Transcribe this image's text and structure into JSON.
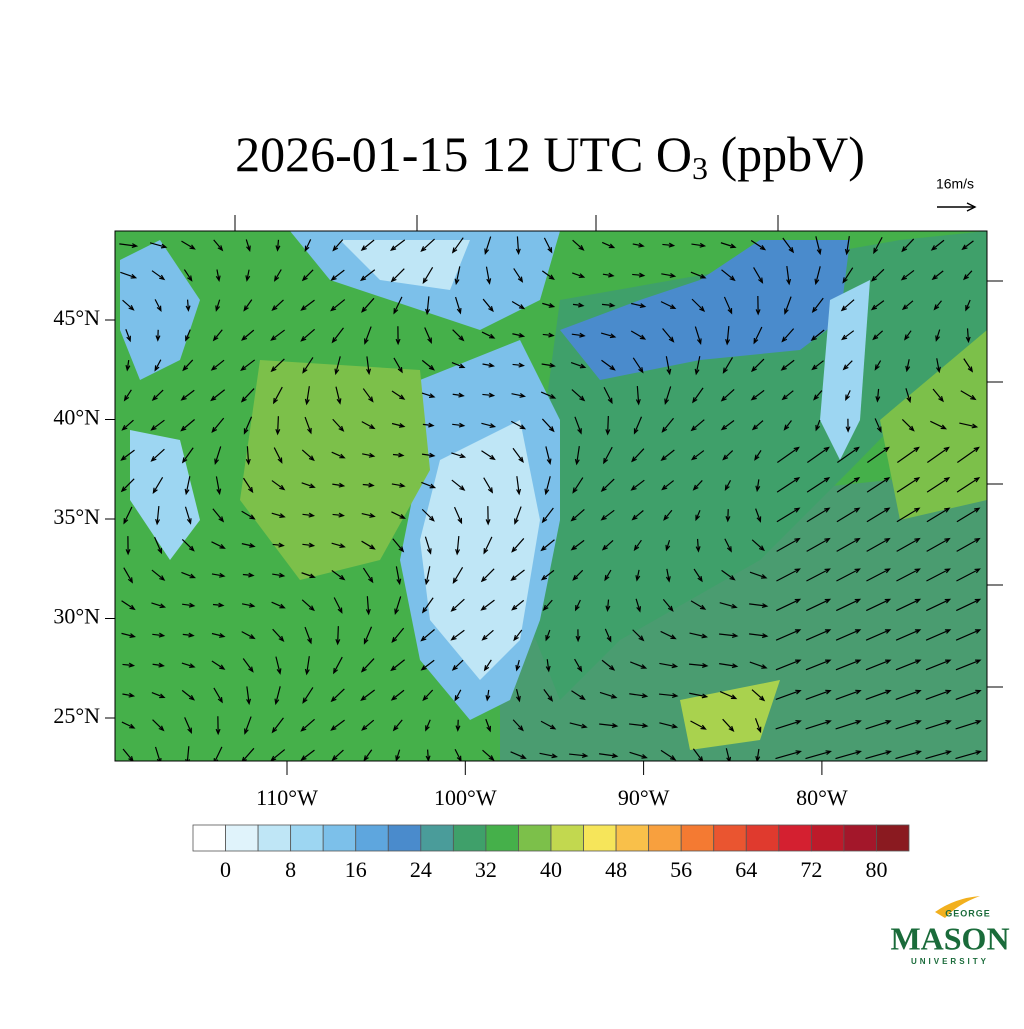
{
  "title": [
    "2026-01-15 12 UTC O",
    "3",
    " (ppbV)"
  ],
  "wind_reference": "16m/s",
  "map": {
    "lat_ticks": [
      {
        "value": 45,
        "label": "45°N"
      },
      {
        "value": 40,
        "label": "40°N"
      },
      {
        "value": 35,
        "label": "35°N"
      },
      {
        "value": 30,
        "label": "30°N"
      },
      {
        "value": 25,
        "label": "25°N"
      }
    ],
    "lon_ticks": [
      {
        "value": -110,
        "label": "110°W"
      },
      {
        "value": -100,
        "label": "100°W"
      },
      {
        "value": -90,
        "label": "90°W"
      },
      {
        "value": -80,
        "label": "80°W"
      }
    ]
  },
  "colorbar": {
    "ticks": [
      0,
      8,
      16,
      24,
      32,
      40,
      48,
      56,
      64,
      72,
      80
    ],
    "colors": [
      "#ffffff",
      "#e0f3fb",
      "#bfe6f6",
      "#9dd6f2",
      "#7cc0ea",
      "#5ea6de",
      "#4a8bcc",
      "#4a9c9a",
      "#3fa06a",
      "#45b04a",
      "#7cc04a",
      "#c2d84f",
      "#f6e55a",
      "#f9c04a",
      "#f8a03e",
      "#f47a32",
      "#ea5530",
      "#e03a2e",
      "#d42030",
      "#bd1a2a",
      "#a3172a",
      "#8a1a20"
    ]
  },
  "logo": {
    "top": "GEORGE",
    "main": "MASON",
    "bottom": "UNIVERSITY"
  }
}
